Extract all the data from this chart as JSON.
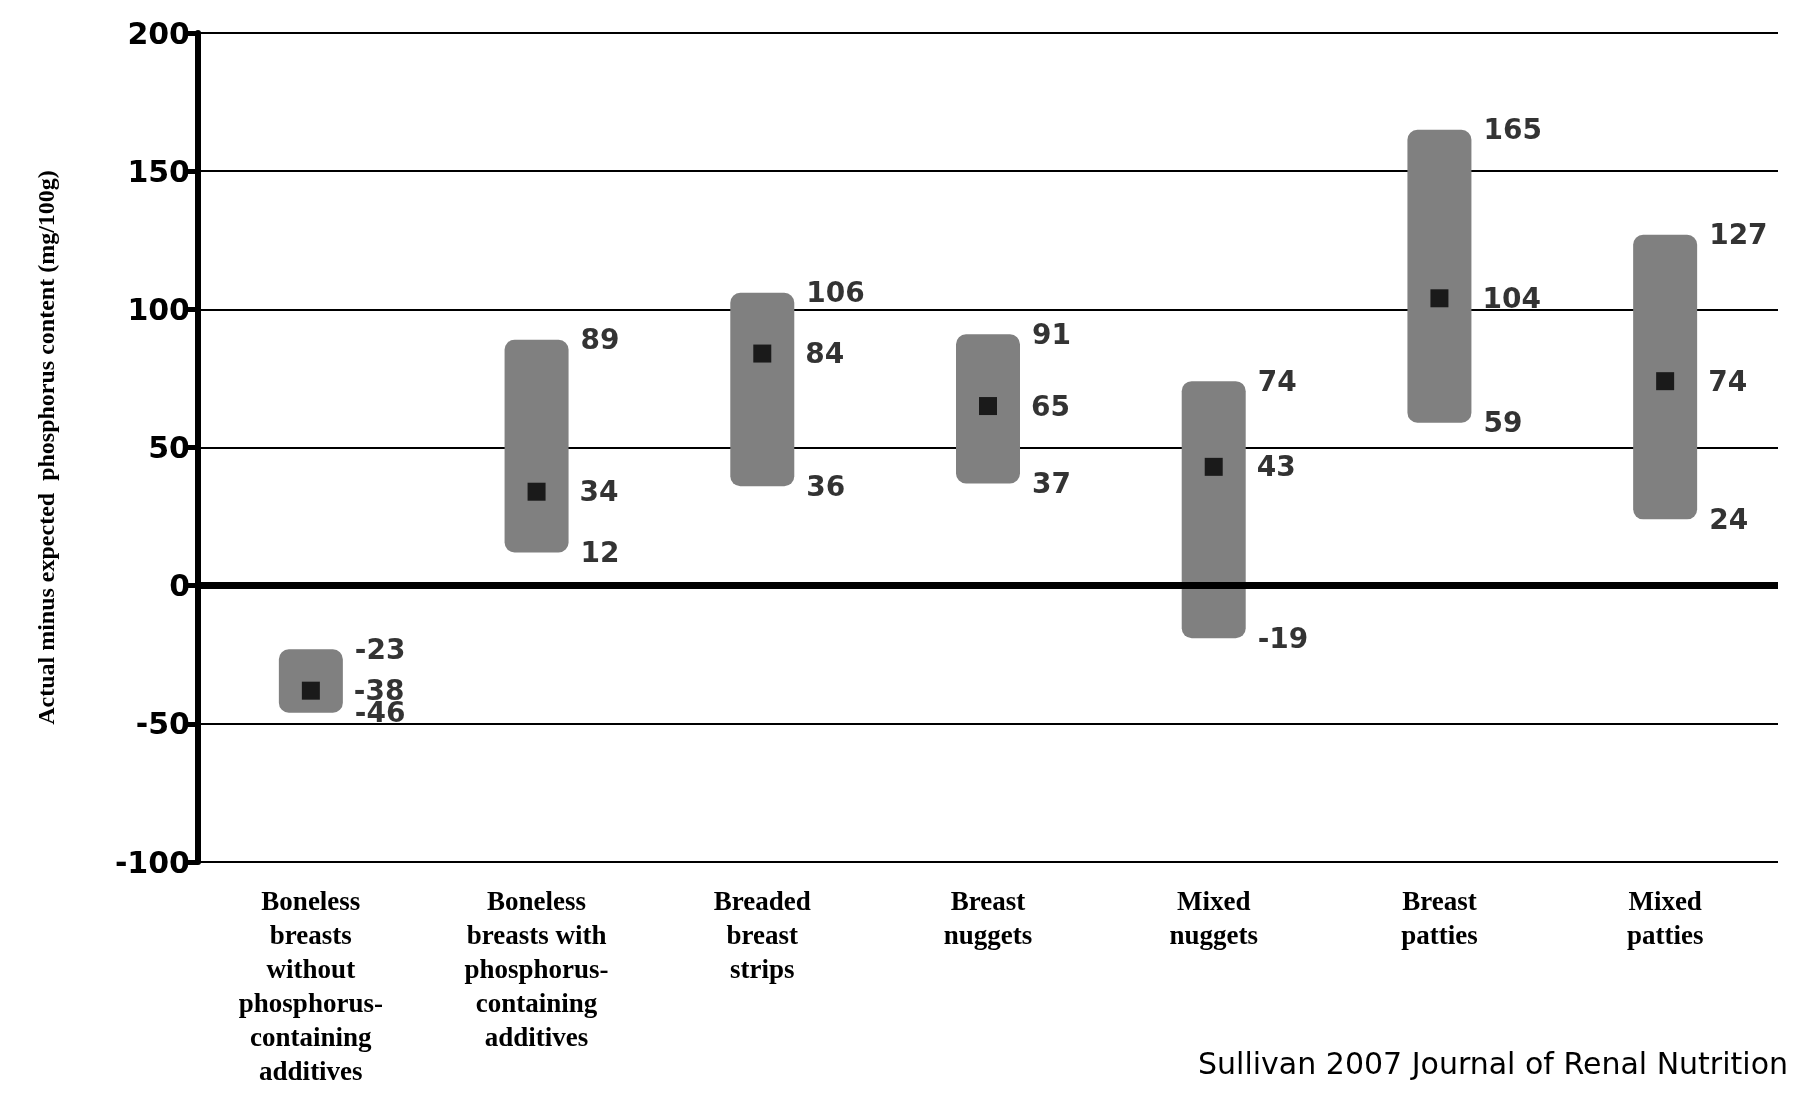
{
  "chart_data": {
    "type": "bar",
    "ylabel": "Actual minus expected  phosphorus content (mg/100g)",
    "categories": [
      "Boneless breasts without phosphorus-containing additives",
      "Boneless breasts with phosphorus-containing additives",
      "Breaded breast strips",
      "Breast nuggets",
      "Mixed nuggets",
      "Breast patties",
      "Mixed patties"
    ],
    "ylim": [
      -100,
      200
    ],
    "yticks": [
      -100,
      -50,
      0,
      50,
      100,
      150,
      200
    ],
    "grid": "y",
    "ref_lines": [
      {
        "axis": "y",
        "value": 0,
        "color": "#000000"
      }
    ],
    "series": [
      {
        "color": "#808080",
        "base": [
          -46,
          12,
          36,
          37,
          -19,
          59,
          24
        ],
        "values": [
          23,
          77,
          70,
          54,
          93,
          106,
          103
        ]
      },
      {
        "type": "scatter",
        "color": "#000000",
        "marker": "square",
        "x": [
          "Boneless breasts without phosphorus-containing additives",
          "Boneless breasts with phosphorus-containing additives",
          "Breaded breast strips",
          "Breast nuggets",
          "Mixed nuggets",
          "Breast patties",
          "Mixed patties"
        ],
        "values": [
          -38,
          34,
          84,
          65,
          43,
          104,
          74
        ],
        "value_labels": [
          "-38",
          "34",
          "84",
          "65",
          "43",
          "104",
          "74"
        ]
      }
    ],
    "annotations": [
      {
        "text": "-23",
        "x": "Boneless breasts without phosphorus-containing additives",
        "y": -23
      },
      {
        "text": "-46",
        "x": "Boneless breasts without phosphorus-containing additives",
        "y": -46
      },
      {
        "text": "89",
        "x": "Boneless breasts with phosphorus-containing additives",
        "y": 89
      },
      {
        "text": "12",
        "x": "Boneless breasts with phosphorus-containing additives",
        "y": 12
      },
      {
        "text": "106",
        "x": "Breaded breast strips",
        "y": 106
      },
      {
        "text": "36",
        "x": "Breaded breast strips",
        "y": 36
      },
      {
        "text": "91",
        "x": "Breast nuggets",
        "y": 91
      },
      {
        "text": "37",
        "x": "Breast nuggets",
        "y": 37
      },
      {
        "text": "74",
        "x": "Mixed nuggets",
        "y": 74
      },
      {
        "text": "-19",
        "x": "Mixed nuggets",
        "y": -19
      },
      {
        "text": "165",
        "x": "Breast patties",
        "y": 165
      },
      {
        "text": "59",
        "x": "Breast patties",
        "y": 59
      },
      {
        "text": "127",
        "x": "Mixed patties",
        "y": 127
      },
      {
        "text": "24",
        "x": "Mixed patties",
        "y": 24
      },
      "Sullivan 2007 Journal of Renal Nutrition"
    ]
  }
}
